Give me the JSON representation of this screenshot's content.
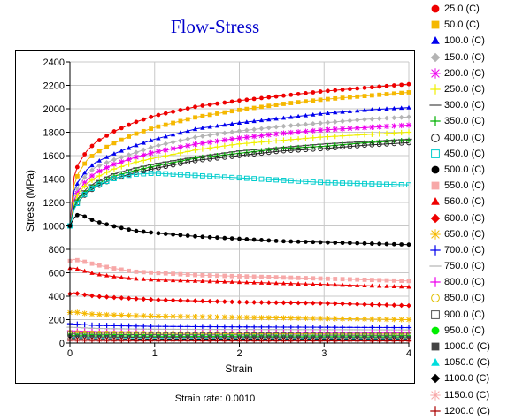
{
  "chart_data": {
    "type": "scatter",
    "title": "Flow-Stress",
    "xlabel": "Strain",
    "ylabel": "Stress (MPa)",
    "xlim": [
      0,
      4
    ],
    "ylim": [
      0,
      2400
    ],
    "xticks": [
      "0",
      "1",
      "2",
      "3",
      "4"
    ],
    "yticks": [
      "0",
      "200",
      "400",
      "600",
      "800",
      "1000",
      "1200",
      "1400",
      "1600",
      "1800",
      "2000",
      "2200",
      "2400"
    ],
    "grid": true,
    "legend_position": "right",
    "footer": "Strain rate: 0.0010",
    "series": [
      {
        "name": "25.0 (C)",
        "color": "#ee0000",
        "marker": "circle",
        "x": [
          0,
          0.05,
          0.1,
          0.2,
          0.3,
          0.5,
          0.75,
          1,
          1.5,
          2,
          2.5,
          3,
          3.5,
          4
        ],
        "y": [
          1000,
          1420,
          1530,
          1640,
          1710,
          1800,
          1880,
          1940,
          2020,
          2070,
          2110,
          2150,
          2180,
          2210
        ]
      },
      {
        "name": "50.0 (C)",
        "color": "#f5b800",
        "marker": "square",
        "x": [
          0,
          0.05,
          0.1,
          0.2,
          0.3,
          0.5,
          0.75,
          1,
          1.5,
          2,
          2.5,
          3,
          3.5,
          4
        ],
        "y": [
          1000,
          1350,
          1450,
          1560,
          1620,
          1700,
          1780,
          1840,
          1930,
          1990,
          2040,
          2080,
          2110,
          2140
        ]
      },
      {
        "name": "100.0 (C)",
        "color": "#0000ee",
        "marker": "triangle",
        "x": [
          0,
          0.05,
          0.1,
          0.2,
          0.3,
          0.5,
          0.75,
          1,
          1.5,
          2,
          2.5,
          3,
          3.5,
          4
        ],
        "y": [
          1000,
          1300,
          1380,
          1480,
          1540,
          1610,
          1680,
          1740,
          1830,
          1880,
          1920,
          1960,
          1990,
          2010
        ]
      },
      {
        "name": "150.0 (C)",
        "color": "#b4b4b4",
        "marker": "diamond",
        "x": [
          0,
          0.05,
          0.1,
          0.2,
          0.3,
          0.5,
          0.75,
          1,
          1.5,
          2,
          2.5,
          3,
          3.5,
          4
        ],
        "y": [
          1000,
          1250,
          1340,
          1440,
          1500,
          1560,
          1620,
          1680,
          1760,
          1810,
          1850,
          1880,
          1910,
          1930
        ]
      },
      {
        "name": "200.0 (C)",
        "color": "#ee00ee",
        "marker": "asterisk",
        "x": [
          0,
          0.05,
          0.1,
          0.2,
          0.3,
          0.5,
          0.75,
          1,
          1.5,
          2,
          2.5,
          3,
          3.5,
          4
        ],
        "y": [
          1000,
          1220,
          1300,
          1390,
          1450,
          1520,
          1580,
          1630,
          1700,
          1750,
          1790,
          1820,
          1840,
          1860
        ]
      },
      {
        "name": "250.0 (C)",
        "color": "#f0f000",
        "marker": "plus",
        "x": [
          0,
          0.05,
          0.1,
          0.2,
          0.3,
          0.5,
          0.75,
          1,
          1.5,
          2,
          2.5,
          3,
          3.5,
          4
        ],
        "y": [
          1000,
          1200,
          1280,
          1360,
          1410,
          1480,
          1540,
          1580,
          1650,
          1700,
          1730,
          1760,
          1780,
          1800
        ]
      },
      {
        "name": "300.0 (C)",
        "color": "#444444",
        "marker": "line",
        "x": [
          0,
          0.05,
          0.1,
          0.2,
          0.3,
          0.5,
          0.75,
          1,
          1.5,
          2,
          2.5,
          3,
          3.5,
          4
        ],
        "y": [
          1000,
          1170,
          1240,
          1320,
          1370,
          1440,
          1490,
          1530,
          1590,
          1640,
          1670,
          1700,
          1720,
          1740
        ]
      },
      {
        "name": "350.0 (C)",
        "color": "#00b000",
        "marker": "plus",
        "x": [
          0,
          0.05,
          0.1,
          0.2,
          0.3,
          0.5,
          0.75,
          1,
          1.5,
          2,
          2.5,
          3,
          3.5,
          4
        ],
        "y": [
          1000,
          1160,
          1230,
          1300,
          1350,
          1420,
          1470,
          1510,
          1580,
          1620,
          1660,
          1680,
          1710,
          1730
        ]
      },
      {
        "name": "400.0 (C)",
        "color": "#222222",
        "marker": "circle-open",
        "x": [
          0,
          0.05,
          0.1,
          0.2,
          0.3,
          0.5,
          0.75,
          1,
          1.5,
          2,
          2.5,
          3,
          3.5,
          4
        ],
        "y": [
          1000,
          1150,
          1210,
          1280,
          1330,
          1400,
          1450,
          1490,
          1560,
          1600,
          1640,
          1660,
          1690,
          1710
        ]
      },
      {
        "name": "450.0 (C)",
        "color": "#00cccc",
        "marker": "square-open",
        "x": [
          0,
          0.05,
          0.1,
          0.2,
          0.3,
          0.5,
          0.75,
          1,
          1.5,
          2,
          2.5,
          3,
          3.5,
          4
        ],
        "y": [
          1000,
          1140,
          1210,
          1290,
          1340,
          1400,
          1440,
          1450,
          1430,
          1410,
          1390,
          1370,
          1360,
          1350
        ]
      },
      {
        "name": "500.0 (C)",
        "color": "#000000",
        "marker": "circle",
        "x": [
          0,
          0.05,
          0.1,
          0.15,
          0.2,
          0.3,
          0.5,
          0.75,
          1,
          1.5,
          2,
          2.5,
          3,
          3.5,
          4
        ],
        "y": [
          1000,
          1070,
          1100,
          1090,
          1070,
          1040,
          1000,
          960,
          940,
          910,
          890,
          870,
          860,
          850,
          840
        ]
      },
      {
        "name": "550.0 (C)",
        "color": "#f7a8a8",
        "marker": "square",
        "x": [
          0,
          0.05,
          0.1,
          0.2,
          0.3,
          0.5,
          0.75,
          1,
          1.5,
          2,
          2.5,
          3,
          3.5,
          4
        ],
        "y": [
          700,
          715,
          705,
          690,
          670,
          640,
          610,
          600,
          580,
          570,
          560,
          550,
          540,
          530
        ]
      },
      {
        "name": "560.0 (C)",
        "color": "#ee0000",
        "marker": "triangle",
        "x": [
          0,
          0.05,
          0.1,
          0.2,
          0.3,
          0.5,
          0.75,
          1,
          1.5,
          2,
          2.5,
          3,
          3.5,
          4
        ],
        "y": [
          640,
          640,
          630,
          610,
          590,
          570,
          550,
          540,
          530,
          520,
          510,
          500,
          490,
          480
        ]
      },
      {
        "name": "600.0 (C)",
        "color": "#ee0000",
        "marker": "diamond",
        "x": [
          0,
          0.05,
          0.1,
          0.2,
          0.3,
          0.5,
          0.75,
          1,
          1.5,
          2,
          2.5,
          3,
          3.5,
          4
        ],
        "y": [
          420,
          430,
          420,
          410,
          400,
          390,
          380,
          370,
          360,
          350,
          345,
          340,
          330,
          320
        ]
      },
      {
        "name": "650.0 (C)",
        "color": "#f5b800",
        "marker": "asterisk",
        "x": [
          0,
          0.05,
          0.1,
          0.2,
          0.3,
          0.5,
          0.75,
          1,
          1.5,
          2,
          2.5,
          3,
          3.5,
          4
        ],
        "y": [
          260,
          265,
          260,
          250,
          245,
          240,
          235,
          230,
          225,
          220,
          215,
          210,
          205,
          200
        ]
      },
      {
        "name": "700.0 (C)",
        "color": "#0000ee",
        "marker": "plus",
        "x": [
          0,
          0.1,
          0.2,
          0.3,
          0.5,
          0.75,
          1,
          1.5,
          2,
          2.5,
          3,
          3.5,
          4
        ],
        "y": [
          165,
          160,
          155,
          150,
          148,
          145,
          142,
          140,
          138,
          136,
          135,
          133,
          132
        ]
      },
      {
        "name": "750.0 (C)",
        "color": "#b4b4b4",
        "marker": "line",
        "x": [
          0,
          0.1,
          0.2,
          0.3,
          0.5,
          0.75,
          1,
          1.5,
          2,
          2.5,
          3,
          3.5,
          4
        ],
        "y": [
          135,
          132,
          128,
          125,
          122,
          120,
          118,
          117,
          116,
          115,
          114,
          113,
          112
        ]
      },
      {
        "name": "800.0 (C)",
        "color": "#ee00ee",
        "marker": "plus",
        "x": [
          0,
          0.1,
          0.2,
          0.3,
          0.5,
          0.75,
          1,
          1.5,
          2,
          2.5,
          3,
          3.5,
          4
        ],
        "y": [
          105,
          102,
          100,
          98,
          96,
          95,
          94,
          93,
          92,
          91,
          90,
          89,
          88
        ]
      },
      {
        "name": "850.0 (C)",
        "color": "#e0c000",
        "marker": "circle-open",
        "x": [
          0,
          0.1,
          0.2,
          0.3,
          0.5,
          0.75,
          1,
          1.5,
          2,
          2.5,
          3,
          3.5,
          4
        ],
        "y": [
          90,
          88,
          86,
          85,
          84,
          83,
          82,
          81,
          80,
          79,
          78,
          77,
          76
        ]
      },
      {
        "name": "900.0 (C)",
        "color": "#555555",
        "marker": "square-open",
        "x": [
          0,
          0.1,
          0.2,
          0.3,
          0.5,
          0.75,
          1,
          1.5,
          2,
          2.5,
          3,
          3.5,
          4
        ],
        "y": [
          78,
          76,
          75,
          74,
          73,
          72,
          71,
          70,
          69,
          68,
          67,
          66,
          65
        ]
      },
      {
        "name": "950.0 (C)",
        "color": "#00ee00",
        "marker": "circle",
        "x": [
          0,
          0.1,
          0.2,
          0.3,
          0.5,
          0.75,
          1,
          1.5,
          2,
          2.5,
          3,
          3.5,
          4
        ],
        "y": [
          65,
          63,
          62,
          61,
          60,
          59,
          58,
          57,
          56,
          55,
          55,
          54,
          54
        ]
      },
      {
        "name": "1000.0 (C)",
        "color": "#444444",
        "marker": "square",
        "x": [
          0,
          0.1,
          0.2,
          0.3,
          0.5,
          0.75,
          1,
          1.5,
          2,
          2.5,
          3,
          3.5,
          4
        ],
        "y": [
          55,
          53,
          52,
          51,
          50,
          49,
          48,
          47,
          46,
          46,
          45,
          45,
          44
        ]
      },
      {
        "name": "1050.0 (C)",
        "color": "#00dddd",
        "marker": "triangle",
        "x": [
          0,
          0.1,
          0.2,
          0.3,
          0.5,
          0.75,
          1,
          1.5,
          2,
          2.5,
          3,
          3.5,
          4
        ],
        "y": [
          45,
          44,
          43,
          42,
          41,
          40,
          40,
          39,
          38,
          38,
          37,
          37,
          36
        ]
      },
      {
        "name": "1100.0 (C)",
        "color": "#000000",
        "marker": "diamond",
        "x": [
          0,
          0.1,
          0.2,
          0.3,
          0.5,
          0.75,
          1,
          1.5,
          2,
          2.5,
          3,
          3.5,
          4
        ],
        "y": [
          38,
          37,
          36,
          35,
          35,
          34,
          34,
          33,
          33,
          32,
          32,
          31,
          31
        ]
      },
      {
        "name": "1150.0 (C)",
        "color": "#f7a8a8",
        "marker": "asterisk",
        "x": [
          0,
          0.1,
          0.2,
          0.3,
          0.5,
          0.75,
          1,
          1.5,
          2,
          2.5,
          3,
          3.5,
          4
        ],
        "y": [
          30,
          29,
          29,
          28,
          28,
          27,
          27,
          26,
          26,
          25,
          25,
          25,
          24
        ]
      },
      {
        "name": "1200.0 (C)",
        "color": "#aa0000",
        "marker": "plus",
        "x": [
          0,
          0.1,
          0.2,
          0.3,
          0.5,
          0.75,
          1,
          1.5,
          2,
          2.5,
          3,
          3.5,
          4
        ],
        "y": [
          24,
          23,
          23,
          22,
          22,
          21,
          21,
          20,
          20,
          20,
          19,
          19,
          19
        ]
      }
    ]
  }
}
